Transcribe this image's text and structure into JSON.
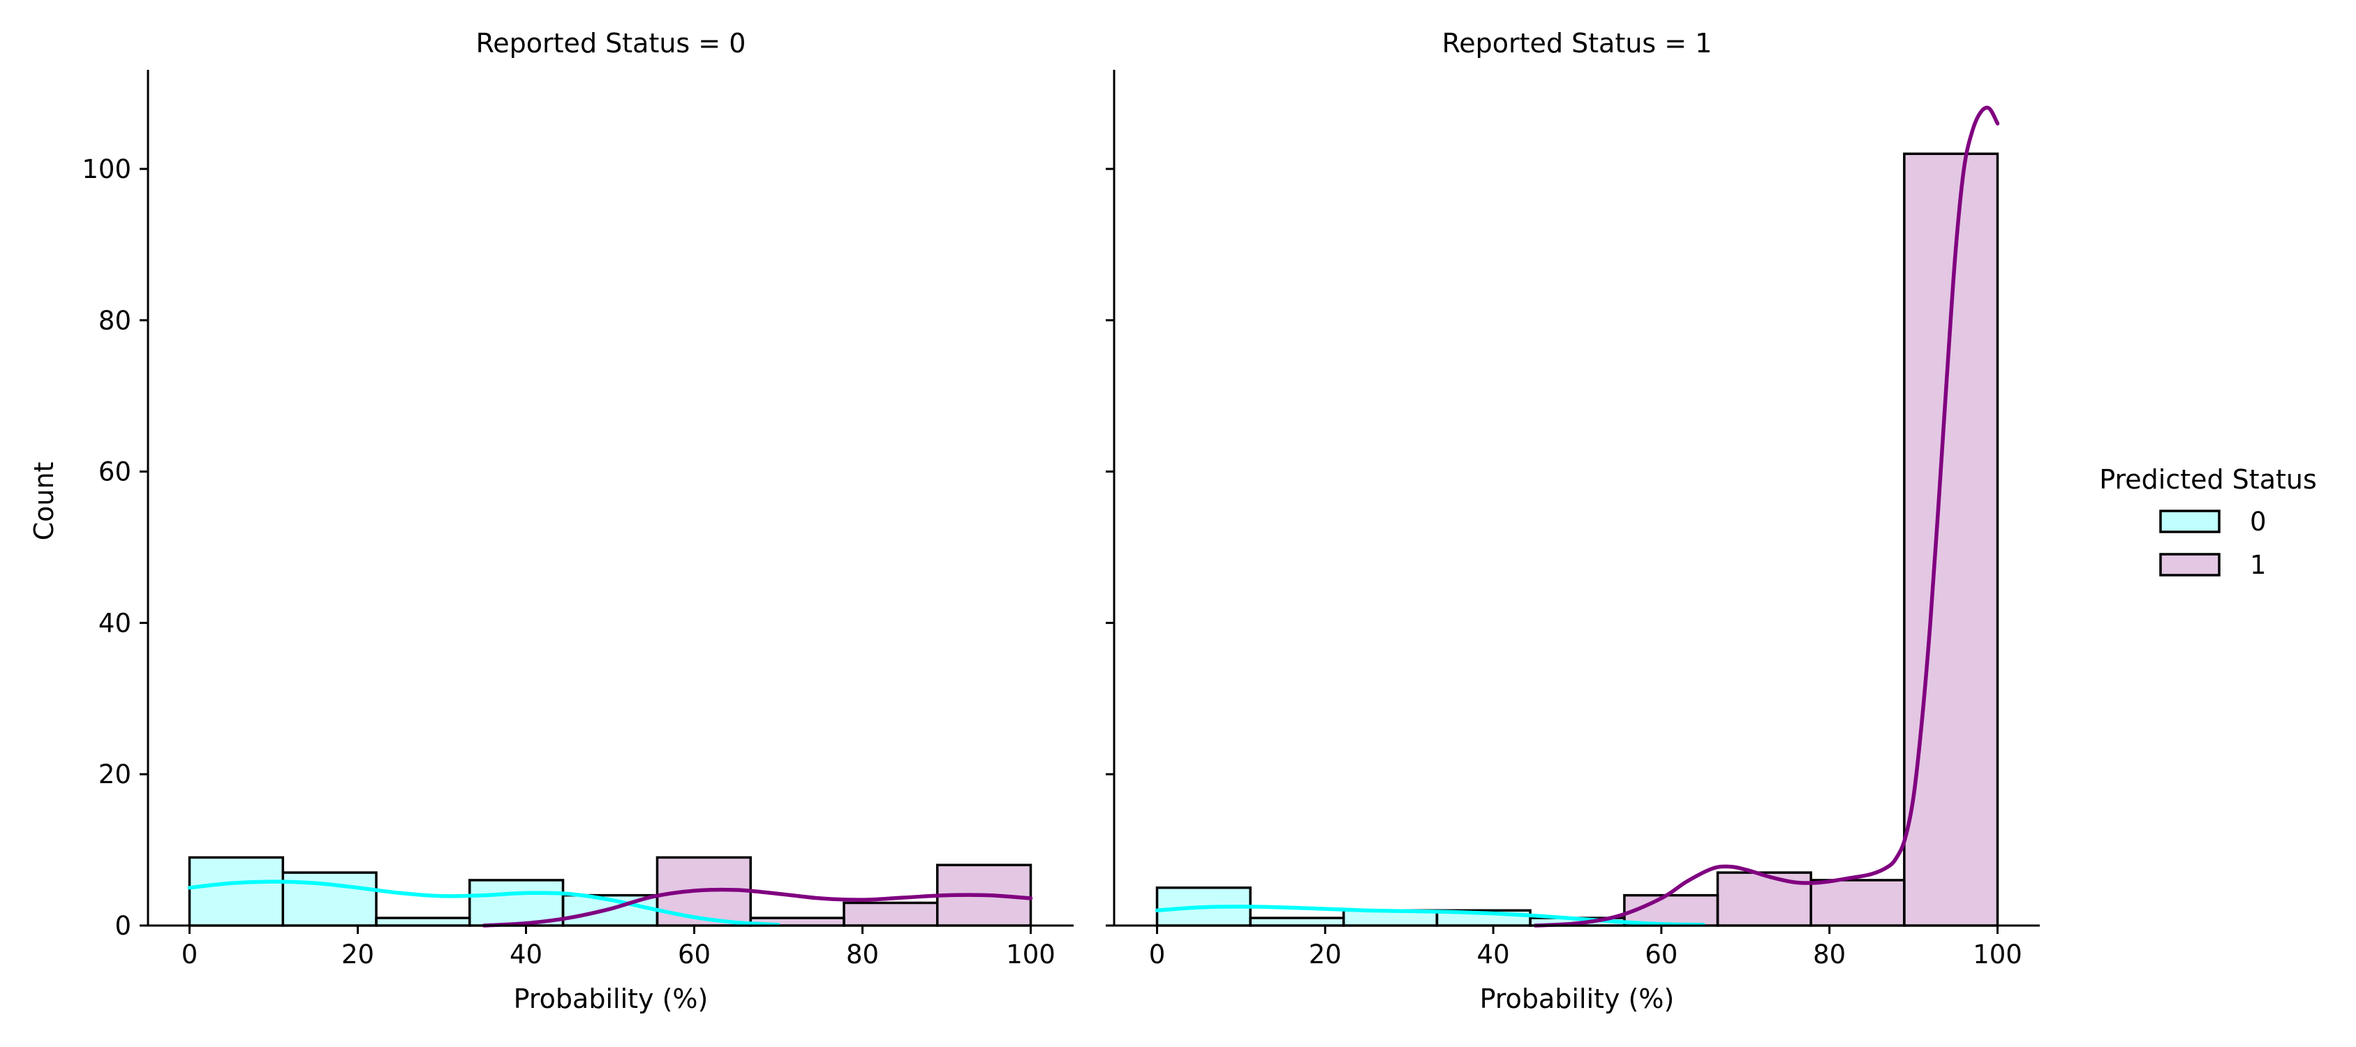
{
  "chart_data": {
    "type": "bar",
    "colors": {
      "0": "#00ffff",
      "1": "#800080"
    },
    "legend": {
      "title": "Predicted Status",
      "placement": "right",
      "entries": [
        "0",
        "1"
      ]
    },
    "ylabel": "Count",
    "ylim": [
      0,
      113
    ],
    "yticks": [
      "0",
      "20",
      "40",
      "60",
      "80",
      "100"
    ],
    "panels": [
      {
        "title": "Reported Status = 0",
        "xlabel": "Probability (%)",
        "xlim": [
          -5,
          105
        ],
        "xticks": [
          "0",
          "20",
          "40",
          "60",
          "80",
          "100"
        ],
        "bins": [
          0,
          11.1,
          22.2,
          33.3,
          44.4,
          55.6,
          66.7,
          77.8,
          88.9,
          100
        ],
        "series": [
          {
            "name": "0",
            "values": [
              9,
              7,
              1,
              6,
              4,
              0,
              0,
              0,
              0
            ]
          },
          {
            "name": "1",
            "values": [
              0,
              0,
              0,
              0,
              0,
              9,
              1,
              3,
              8
            ]
          }
        ],
        "kde": [
          {
            "name": "0",
            "x": [
              0,
              5,
              10,
              15,
              20,
              25,
              30,
              35,
              40,
              45,
              50,
              55,
              60,
              65,
              70
            ],
            "y": [
              5.0,
              5.6,
              5.8,
              5.6,
              5.0,
              4.3,
              3.9,
              4.0,
              4.3,
              4.2,
              3.4,
              2.2,
              1.1,
              0.4,
              0.1
            ]
          },
          {
            "name": "1",
            "x": [
              35,
              40,
              45,
              50,
              55,
              60,
              65,
              70,
              75,
              80,
              85,
              90,
              95,
              100
            ],
            "y": [
              0.0,
              0.3,
              1.0,
              2.2,
              3.8,
              4.6,
              4.7,
              4.2,
              3.6,
              3.4,
              3.7,
              4.0,
              4.0,
              3.6
            ]
          }
        ]
      },
      {
        "title": "Reported Status = 1",
        "xlabel": "Probability (%)",
        "xlim": [
          -5,
          105
        ],
        "xticks": [
          "0",
          "20",
          "40",
          "60",
          "80",
          "100"
        ],
        "bins": [
          0,
          11.1,
          22.2,
          33.3,
          44.4,
          55.6,
          66.7,
          77.8,
          88.9,
          100
        ],
        "series": [
          {
            "name": "0",
            "values": [
              5,
              1,
              2,
              2,
              1,
              0,
              0,
              0,
              0
            ]
          },
          {
            "name": "1",
            "values": [
              0,
              0,
              0,
              0,
              0,
              4,
              7,
              6,
              102
            ]
          }
        ],
        "kde": [
          {
            "name": "0",
            "x": [
              0,
              5,
              10,
              15,
              20,
              25,
              30,
              35,
              40,
              45,
              50,
              55,
              60,
              65
            ],
            "y": [
              2.0,
              2.4,
              2.5,
              2.4,
              2.2,
              2.0,
              1.9,
              1.8,
              1.6,
              1.3,
              0.9,
              0.5,
              0.2,
              0.1
            ]
          },
          {
            "name": "1",
            "x": [
              45,
              50,
              55,
              60,
              63,
              66,
              68,
              70,
              73,
              76,
              79,
              82,
              85,
              87,
              88,
              89,
              90,
              91,
              92,
              93,
              94,
              95,
              96,
              97,
              98,
              99,
              100
            ],
            "y": [
              0.0,
              0.3,
              1.3,
              3.6,
              5.8,
              7.5,
              7.8,
              7.4,
              6.4,
              5.7,
              5.7,
              6.2,
              6.8,
              7.8,
              9.0,
              11.5,
              17.0,
              27.0,
              40.0,
              56.0,
              73.0,
              89.0,
              100.0,
              105.0,
              107.5,
              108.0,
              106.0
            ]
          }
        ]
      }
    ]
  }
}
